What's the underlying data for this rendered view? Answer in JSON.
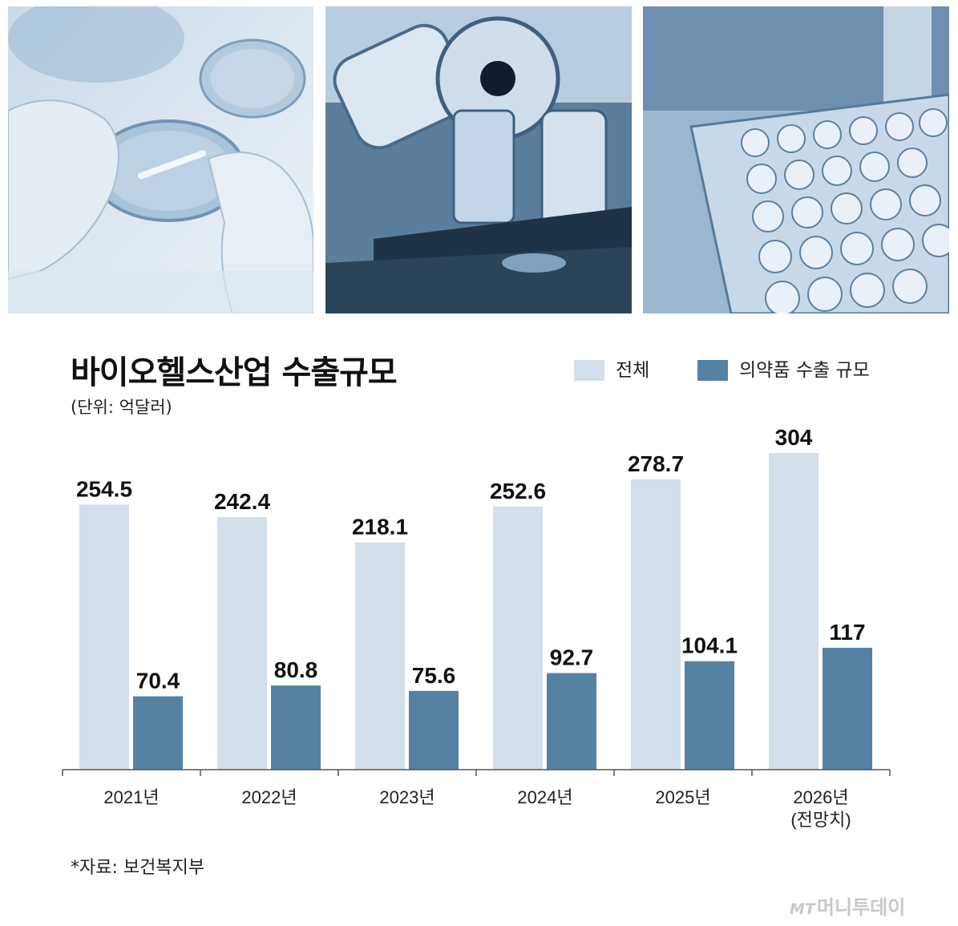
{
  "colors": {
    "total": "#d3dfea",
    "pharma": "#5582a3",
    "photo_tint": "#8fb0cc"
  },
  "title": "바이오헬스산업 수출규모",
  "unit": "(단위: 억달러)",
  "legend": {
    "total": "전체",
    "pharma": "의약품 수출 규모"
  },
  "source": "*자료: 보건복지부",
  "watermark": "머니투데이",
  "watermark_logo": "MT",
  "chart_data": {
    "type": "bar",
    "categories": [
      "2021년",
      "2022년",
      "2023년",
      "2024년",
      "2025년",
      "2026년\n(전망치)"
    ],
    "series": [
      {
        "name": "전체",
        "values": [
          254.5,
          242.4,
          218.1,
          252.6,
          278.7,
          304
        ]
      },
      {
        "name": "의약품 수출 규모",
        "values": [
          70.4,
          80.8,
          75.6,
          92.7,
          104.1,
          117
        ]
      }
    ],
    "value_labels": {
      "total": [
        "254.5",
        "242.4",
        "218.1",
        "252.6",
        "278.7",
        "304"
      ],
      "pharma": [
        "70.4",
        "80.8",
        "75.6",
        "92.7",
        "104.1",
        "117"
      ]
    },
    "title": "바이오헬스산업 수출규모",
    "ylabel": "",
    "ylim": [
      0,
      304
    ],
    "grid": false,
    "legend_position": "top-right"
  }
}
